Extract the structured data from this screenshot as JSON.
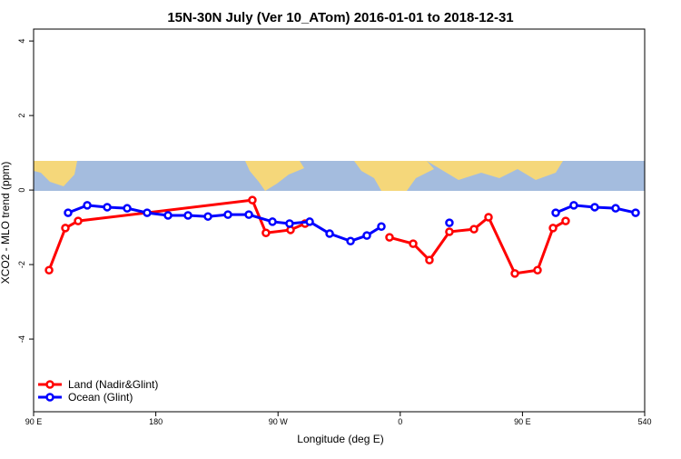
{
  "chart_data": {
    "type": "line",
    "title": "15N-30N July (Ver 10_ATom)   2016-01-01 to 2018-12-31",
    "x_label": "Longitude (deg E)",
    "y_label": "XCO2 - MLO trend (ppm)",
    "xlim": [
      90,
      540
    ],
    "ylim": [
      -5.95,
      4.32
    ],
    "xticks": [
      {
        "value": 90,
        "label": "90 E"
      },
      180,
      {
        "value": 270,
        "label": "90 W"
      },
      {
        "value": 360,
        "label": "0"
      },
      {
        "value": 450,
        "label": "90 E"
      },
      540
    ],
    "yticks": [
      -4,
      -2,
      0,
      2,
      4
    ],
    "legend": "bottom-left",
    "series": [
      {
        "name": "Land (Nadir&Glint)",
        "color": "#ff0000",
        "x": [
          101.4,
          113.4,
          122.8,
          251.1,
          261.1,
          279.2,
          289.9,
          null,
          352.1,
          369.5,
          381.5,
          396.2,
          414.3,
          425.0,
          444.4,
          461.1,
          472.5,
          481.8
        ],
        "values": [
          -2.15,
          -1.02,
          -0.83,
          -0.27,
          -1.15,
          -1.07,
          -0.9,
          null,
          -1.27,
          -1.44,
          -1.88,
          -1.12,
          -1.05,
          -0.73,
          -2.24,
          -2.15,
          -1.02,
          -0.83
        ]
      },
      {
        "name": "Ocean (Glint)",
        "color": "#0000ff",
        "x": [
          115.4,
          129.5,
          144.2,
          158.9,
          173.6,
          189.0,
          203.7,
          218.4,
          233.1,
          248.5,
          265.9,
          278.5,
          293.3,
          308.0,
          323.4,
          335.4,
          346.1,
          null,
          396.2,
          null,
          474.5,
          487.8,
          503.2,
          518.6,
          533.3
        ],
        "values": [
          -0.61,
          -0.41,
          -0.46,
          -0.49,
          -0.61,
          -0.68,
          -0.68,
          -0.71,
          -0.66,
          -0.66,
          -0.85,
          -0.9,
          -0.85,
          -1.17,
          -1.37,
          -1.22,
          -0.98,
          null,
          -0.88,
          null,
          -0.61,
          -0.41,
          -0.46,
          -0.49,
          -0.61
        ]
      }
    ]
  }
}
